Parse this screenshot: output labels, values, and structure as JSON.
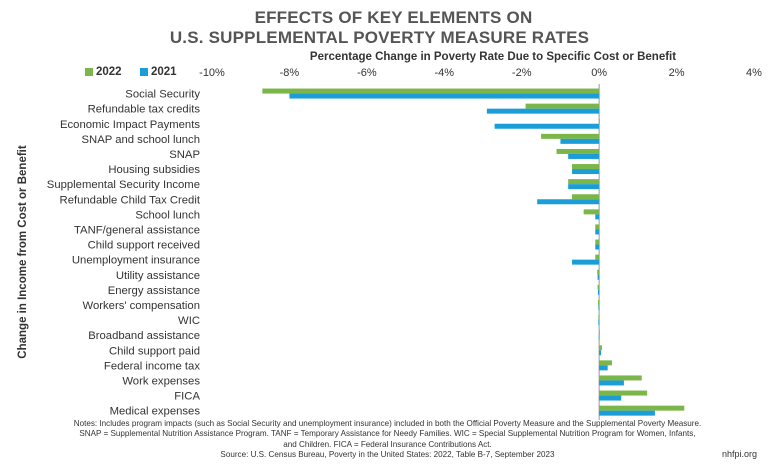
{
  "title_line1": "EFFECTS OF KEY ELEMENTS ON",
  "title_line2": "U.S. SUPPLEMENTAL POVERTY MEASURE RATES",
  "brand": "nhfpi.org",
  "notes": [
    "Notes: Includes program impacts (such as Social Security and unemployment insurance) included in both the Official Poverty Measure and the Supplemental Poverty Measure.",
    "SNAP = Supplemental Nutrition Assistance Program. TANF = Temporary Assistance for Needy Families. WIC = Special Supplemental Nutrition Program for Women, Infants,",
    "and Children. FICA = Federal Insurance Contributions Act.",
    "Source: U.S. Census Bureau, Poverty in the United States: 2022, Table B-7, September 2023"
  ],
  "colors": {
    "2022": "#7ab648",
    "2021": "#1b9ed8",
    "title": "#555555",
    "axis": "#999999"
  },
  "chart_data": {
    "type": "bar",
    "orientation": "horizontal",
    "subtitle": "Percentage Change in Poverty Rate Due to Specific Cost or Benefit",
    "ylabel": "Change in Income from Cost or Benefit",
    "xlim": [
      -10,
      4
    ],
    "xticks": [
      "-10%",
      "-8%",
      "-6%",
      "-4%",
      "-2%",
      "0%",
      "2%",
      "4%"
    ],
    "xtick_values": [
      -10,
      -8,
      -6,
      -4,
      -2,
      0,
      2,
      4
    ],
    "legend_position": "top-left",
    "categories": [
      "Social Security",
      "Refundable tax credits",
      "Economic Impact Payments",
      "SNAP and school lunch",
      "SNAP",
      "Housing subsidies",
      "Supplemental Security Income",
      "Refundable Child Tax Credit",
      "School lunch",
      "TANF/general assistance",
      "Child support received",
      "Unemployment insurance",
      "Utility assistance",
      "Energy assistance",
      "Workers' compensation",
      "WIC",
      "Broadband assistance",
      "Child support paid",
      "Federal income tax",
      "Work expenses",
      "FICA",
      "Medical expenses"
    ],
    "series": [
      {
        "name": "2022",
        "values": [
          -8.7,
          -1.9,
          0.0,
          -1.5,
          -1.1,
          -0.7,
          -0.8,
          -0.7,
          -0.4,
          -0.1,
          -0.1,
          -0.1,
          -0.05,
          -0.04,
          -0.03,
          -0.02,
          0.0,
          0.07,
          0.33,
          1.1,
          1.24,
          2.2
        ]
      },
      {
        "name": "2021",
        "values": [
          -8.0,
          -2.9,
          -2.7,
          -1.0,
          -0.8,
          -0.7,
          -0.8,
          -1.6,
          -0.1,
          -0.1,
          -0.1,
          -0.7,
          -0.04,
          -0.03,
          -0.02,
          -0.02,
          -0.01,
          0.05,
          0.22,
          0.64,
          0.57,
          1.44
        ]
      }
    ]
  }
}
